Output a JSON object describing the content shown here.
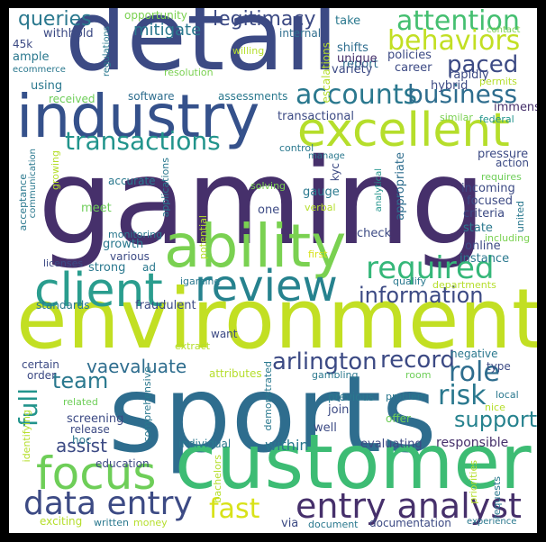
{
  "palette": {
    "background": "#000000",
    "canvas": "#ffffff",
    "dark_purple": "#46306b",
    "navy": "#3c4a84",
    "indigo": "#35518b",
    "blue": "#2e6d8e",
    "teal": "#26828e",
    "green_teal": "#1f9a8a",
    "green": "#35b779",
    "light_green": "#6ece58",
    "lime": "#b5de2b",
    "yellow": "#d8e219"
  },
  "words": [
    {
      "id": "gaming",
      "text": "gaming",
      "color": "#46306b"
    },
    {
      "id": "environment",
      "text": "environment",
      "color": "#c2df23"
    },
    {
      "id": "detail",
      "text": "detail",
      "color": "#3c4a84"
    },
    {
      "id": "sports",
      "text": "sports",
      "color": "#2e6d8e"
    },
    {
      "id": "customer",
      "text": "customer",
      "color": "#3dbc74"
    },
    {
      "id": "industry",
      "text": "industry",
      "color": "#35518b"
    },
    {
      "id": "ability",
      "text": "ability",
      "color": "#7ad151"
    },
    {
      "id": "excellent",
      "text": "excellent",
      "color": "#b5de2b"
    },
    {
      "id": "client",
      "text": "client",
      "color": "#2a9d8e"
    },
    {
      "id": "review",
      "text": "review",
      "color": "#26828e"
    },
    {
      "id": "focus",
      "text": "focus",
      "color": "#6ece58"
    },
    {
      "id": "entry_analyst",
      "text": "entry analyst",
      "color": "#46306b"
    },
    {
      "id": "data_entry",
      "text": "data entry",
      "color": "#3c4a84"
    },
    {
      "id": "required",
      "text": "required",
      "color": "#35b779"
    },
    {
      "id": "attention",
      "text": "attention",
      "color": "#44bf70"
    },
    {
      "id": "behaviors",
      "text": "behaviors",
      "color": "#c2df23"
    },
    {
      "id": "accounts",
      "text": "accounts",
      "color": "#2a788e"
    },
    {
      "id": "business",
      "text": "business",
      "color": "#2e6d8e"
    },
    {
      "id": "transactions",
      "text": "transactions",
      "color": "#22948c"
    },
    {
      "id": "information",
      "text": "information",
      "color": "#3c4a84"
    },
    {
      "id": "arlington",
      "text": "arlington",
      "color": "#3c4a84"
    },
    {
      "id": "record",
      "text": "record",
      "color": "#3c4a84"
    },
    {
      "id": "vaevaluate",
      "text": "vaevaluate",
      "color": "#2e6d8e"
    },
    {
      "id": "role",
      "text": "role",
      "color": "#2e6d8e"
    },
    {
      "id": "risk",
      "text": "risk",
      "color": "#2a788e"
    },
    {
      "id": "fast",
      "text": "fast",
      "color": "#d8e219"
    },
    {
      "id": "support",
      "text": "support",
      "color": "#26828e"
    },
    {
      "id": "full",
      "text": "full",
      "color": "#22948c"
    },
    {
      "id": "team",
      "text": "team",
      "color": "#2a788e"
    },
    {
      "id": "assist",
      "text": "assist",
      "color": "#3c4a84"
    },
    {
      "id": "legitimacy",
      "text": "legitimacy",
      "color": "#3c4a84"
    },
    {
      "id": "paced",
      "text": "paced",
      "color": "#3c4a84"
    },
    {
      "id": "queries",
      "text": "queries",
      "color": "#2a788e"
    },
    {
      "id": "mitigate",
      "text": "mitigate",
      "color": "#2a788e"
    },
    {
      "id": "opportunity",
      "text": "opportunity",
      "color": "#7ad151"
    },
    {
      "id": "withhold",
      "text": "withhold",
      "color": "#3c4a84"
    },
    {
      "id": "45k",
      "text": "45k",
      "color": "#3c4a84"
    },
    {
      "id": "ample",
      "text": "ample",
      "color": "#2a788e"
    },
    {
      "id": "ecommerce",
      "text": "ecommerce",
      "color": "#2a788e"
    },
    {
      "id": "using",
      "text": "using",
      "color": "#2a788e"
    },
    {
      "id": "received",
      "text": "received",
      "color": "#6ece58"
    },
    {
      "id": "software",
      "text": "software",
      "color": "#2e6d8e"
    },
    {
      "id": "assessments",
      "text": "assessments",
      "color": "#2a788e"
    },
    {
      "id": "resolution",
      "text": "resolution",
      "color": "#7ad151"
    },
    {
      "id": "regulations",
      "text": "regulations",
      "color": "#2a788e"
    },
    {
      "id": "willing",
      "text": "willing",
      "color": "#b5de2b"
    },
    {
      "id": "internal",
      "text": "internal",
      "color": "#2e6d8e"
    },
    {
      "id": "take",
      "text": "take",
      "color": "#2a788e"
    },
    {
      "id": "shifts",
      "text": "shifts",
      "color": "#2e6d8e"
    },
    {
      "id": "report",
      "text": "report",
      "color": "#2e6d8e"
    },
    {
      "id": "unique",
      "text": "unique",
      "color": "#46306b"
    },
    {
      "id": "variety",
      "text": "variety",
      "color": "#3c4a84"
    },
    {
      "id": "escalations",
      "text": "escalations",
      "color": "#b5de2b"
    },
    {
      "id": "policies",
      "text": "policies",
      "color": "#3c4a84"
    },
    {
      "id": "career",
      "text": "career",
      "color": "#3c4a84"
    },
    {
      "id": "contact",
      "text": "contact",
      "color": "#7ad151"
    },
    {
      "id": "rapidly",
      "text": "rapidly",
      "color": "#3c4a84"
    },
    {
      "id": "hybrid",
      "text": "hybrid",
      "color": "#3c4a84"
    },
    {
      "id": "permits",
      "text": "permits",
      "color": "#b5de2b"
    },
    {
      "id": "immense",
      "text": "immense",
      "color": "#46306b"
    },
    {
      "id": "federal",
      "text": "federal",
      "color": "#22948c"
    },
    {
      "id": "transactional",
      "text": "transactional",
      "color": "#3c4a84"
    },
    {
      "id": "similar",
      "text": "similar",
      "color": "#7ad151"
    },
    {
      "id": "pressure",
      "text": "pressure",
      "color": "#3c4a84"
    },
    {
      "id": "action",
      "text": "action",
      "color": "#3c4a84"
    },
    {
      "id": "requires",
      "text": "requires",
      "color": "#6ece58"
    },
    {
      "id": "incoming",
      "text": "incoming",
      "color": "#3c4a84"
    },
    {
      "id": "focused",
      "text": "focused",
      "color": "#3c4a84"
    },
    {
      "id": "criteria",
      "text": "criteria",
      "color": "#3c4a84"
    },
    {
      "id": "united",
      "text": "united",
      "color": "#2a788e"
    },
    {
      "id": "including",
      "text": "including",
      "color": "#7ad151"
    },
    {
      "id": "state",
      "text": "state",
      "color": "#2a788e"
    },
    {
      "id": "online",
      "text": "online",
      "color": "#3c4a84"
    },
    {
      "id": "instance",
      "text": "instance",
      "color": "#2a788e"
    },
    {
      "id": "control",
      "text": "control",
      "color": "#2a788e"
    },
    {
      "id": "manage",
      "text": "manage",
      "color": "#2a788e"
    },
    {
      "id": "kyc",
      "text": "kyc",
      "color": "#3c4a84"
    },
    {
      "id": "gauge",
      "text": "gauge",
      "color": "#2a788e"
    },
    {
      "id": "solving",
      "text": "solving",
      "color": "#7ad151"
    },
    {
      "id": "verbal",
      "text": "verbal",
      "color": "#b5de2b"
    },
    {
      "id": "one",
      "text": "one",
      "color": "#3c4a84"
    },
    {
      "id": "analytical",
      "text": "analytical",
      "color": "#22948c"
    },
    {
      "id": "appropriate",
      "text": "appropriate",
      "color": "#2e6d8e"
    },
    {
      "id": "check",
      "text": "check",
      "color": "#3c4a84"
    },
    {
      "id": "first",
      "text": "first",
      "color": "#d8e219"
    },
    {
      "id": "qualify",
      "text": "qualify",
      "color": "#2a788e"
    },
    {
      "id": "departments",
      "text": "departments",
      "color": "#b5de2b"
    },
    {
      "id": "accurate",
      "text": "accurate",
      "color": "#2a788e"
    },
    {
      "id": "growing",
      "text": "growing",
      "color": "#b5de2b"
    },
    {
      "id": "communication",
      "text": "communication",
      "color": "#2a788e"
    },
    {
      "id": "acceptance",
      "text": "acceptance",
      "color": "#2a788e"
    },
    {
      "id": "meet",
      "text": "meet",
      "color": "#6ece58"
    },
    {
      "id": "monitoring",
      "text": "monitoring",
      "color": "#2a788e"
    },
    {
      "id": "growth",
      "text": "growth",
      "color": "#2a788e"
    },
    {
      "id": "various",
      "text": "various",
      "color": "#3c4a84"
    },
    {
      "id": "strong",
      "text": "strong",
      "color": "#2a788e"
    },
    {
      "id": "ad",
      "text": "ad",
      "color": "#2a788e"
    },
    {
      "id": "applications",
      "text": "applications",
      "color": "#2a788e"
    },
    {
      "id": "potential",
      "text": "potential",
      "color": "#b5de2b"
    },
    {
      "id": "licenses",
      "text": "licenses",
      "color": "#3c4a84"
    },
    {
      "id": "igaming",
      "text": "igaming",
      "color": "#2a788e"
    },
    {
      "id": "standards",
      "text": "standards",
      "color": "#2a788e"
    },
    {
      "id": "fraudulent",
      "text": "fraudulent",
      "color": "#3c4a84"
    },
    {
      "id": "want",
      "text": "want",
      "color": "#3c4a84"
    },
    {
      "id": "extract",
      "text": "extract",
      "color": "#b5de2b"
    },
    {
      "id": "certain",
      "text": "certain",
      "color": "#3c4a84"
    },
    {
      "id": "order",
      "text": "order",
      "color": "#3c4a84"
    },
    {
      "id": "attributes",
      "text": "attributes",
      "color": "#b5de2b"
    },
    {
      "id": "gambling",
      "text": "gambling",
      "color": "#2a788e"
    },
    {
      "id": "room",
      "text": "room",
      "color": "#6ece58"
    },
    {
      "id": "negative",
      "text": "negative",
      "color": "#2a788e"
    },
    {
      "id": "type",
      "text": "type",
      "color": "#3c4a84"
    },
    {
      "id": "related",
      "text": "related",
      "color": "#6ece58"
    },
    {
      "id": "demonstrated",
      "text": "demonstrated",
      "color": "#2a788e"
    },
    {
      "id": "previous",
      "text": "previous",
      "color": "#2a788e"
    },
    {
      "id": "problem",
      "text": "problem",
      "color": "#2a788e"
    },
    {
      "id": "local",
      "text": "local",
      "color": "#2a788e"
    },
    {
      "id": "nice",
      "text": "nice",
      "color": "#b5de2b"
    },
    {
      "id": "join",
      "text": "join",
      "color": "#3c4a84"
    },
    {
      "id": "screening",
      "text": "screening",
      "color": "#3c4a84"
    },
    {
      "id": "release",
      "text": "release",
      "color": "#3c4a84"
    },
    {
      "id": "hoc",
      "text": "hoc",
      "color": "#2a788e"
    },
    {
      "id": "comprehensive",
      "text": "comprehensive",
      "color": "#2a788e"
    },
    {
      "id": "well",
      "text": "well",
      "color": "#3c4a84"
    },
    {
      "id": "offer",
      "text": "offer",
      "color": "#6ece58"
    },
    {
      "id": "within",
      "text": "within",
      "color": "#2a788e"
    },
    {
      "id": "responsible",
      "text": "responsible",
      "color": "#46306b"
    },
    {
      "id": "identifying",
      "text": "identifying",
      "color": "#b5de2b"
    },
    {
      "id": "education",
      "text": "education",
      "color": "#3c4a84"
    },
    {
      "id": "individual",
      "text": "individual",
      "color": "#2a788e"
    },
    {
      "id": "evaluating",
      "text": "evaluating",
      "color": "#3c4a84"
    },
    {
      "id": "bachelors",
      "text": "bachelors",
      "color": "#b5de2b"
    },
    {
      "id": "priorities",
      "text": "priorities",
      "color": "#b5de2b"
    },
    {
      "id": "requests",
      "text": "requests",
      "color": "#2a788e"
    },
    {
      "id": "exciting",
      "text": "exciting",
      "color": "#b5de2b"
    },
    {
      "id": "written",
      "text": "written",
      "color": "#2a788e"
    },
    {
      "id": "money",
      "text": "money",
      "color": "#b5de2b"
    },
    {
      "id": "via",
      "text": "via",
      "color": "#3c4a84"
    },
    {
      "id": "document",
      "text": "document",
      "color": "#2a788e"
    },
    {
      "id": "documentation",
      "text": "documentation",
      "color": "#3c4a84"
    },
    {
      "id": "experience",
      "text": "experience",
      "color": "#2a788e"
    }
  ]
}
